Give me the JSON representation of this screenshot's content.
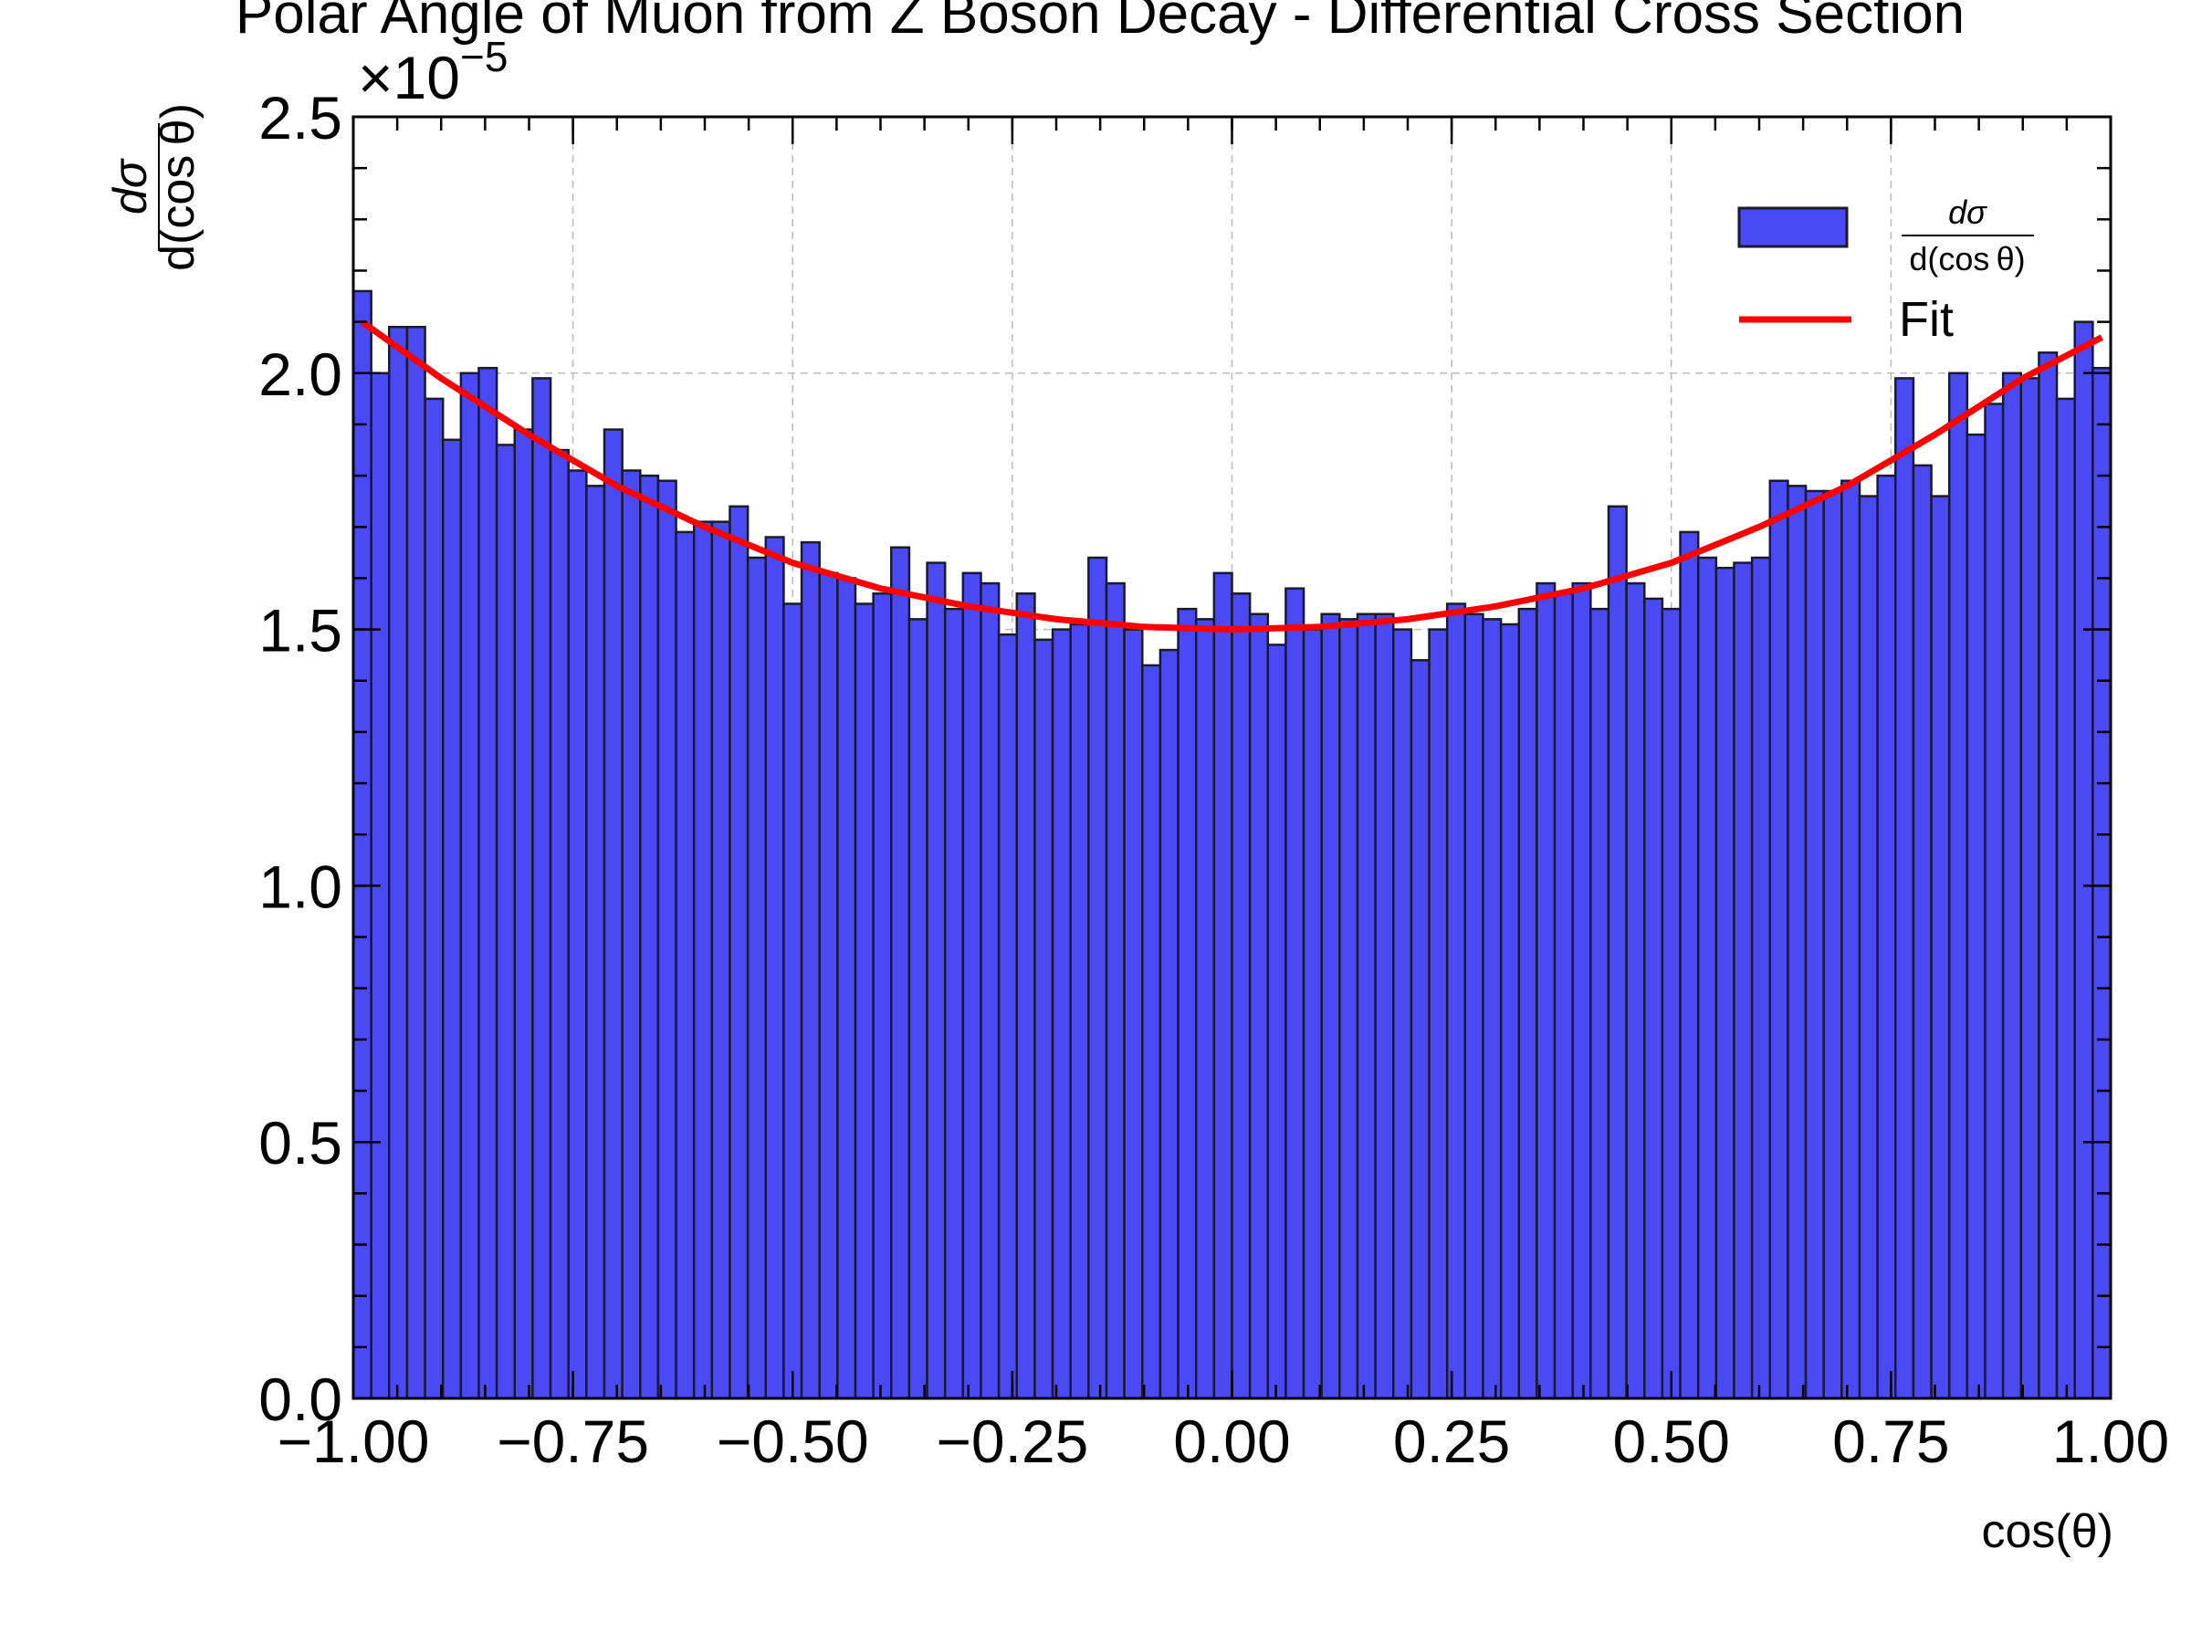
{
  "chart_data": {
    "type": "bar",
    "title": "Polar Angle of Muon from Z Boson Decay - Differential Cross Section",
    "xlabel": "cos(θ)",
    "ylabel_numerator": "dσ",
    "ylabel_denominator": "d(cos θ)",
    "y_multiplier": "×10",
    "y_multiplier_exponent": "−5",
    "xlim": [
      -1.0,
      1.0
    ],
    "ylim": [
      0.0,
      2.5
    ],
    "y_scale_note": "values in units of 1e-5",
    "xticks": [
      "−1.00",
      "−0.75",
      "−0.50",
      "−0.25",
      "0.00",
      "0.25",
      "0.50",
      "0.75",
      "1.00"
    ],
    "xtick_values": [
      -1.0,
      -0.75,
      -0.5,
      -0.25,
      0.0,
      0.25,
      0.5,
      0.75,
      1.0
    ],
    "yticks": [
      "0.0",
      "0.5",
      "1.0",
      "1.5",
      "2.0",
      "2.5"
    ],
    "ytick_values": [
      0.0,
      0.5,
      1.0,
      1.5,
      2.0,
      2.5
    ],
    "grid": true,
    "legend_position": "top-right",
    "bin_edges_range": [
      -1.0,
      1.0
    ],
    "series": [
      {
        "name": "dσ/d(cos θ)",
        "kind": "histogram",
        "color": "#4a4af5",
        "edge_color": "#1a1a2e",
        "values": [
          2.16,
          2.0,
          2.09,
          2.09,
          1.95,
          1.87,
          2.0,
          2.01,
          1.86,
          1.89,
          1.99,
          1.85,
          1.81,
          1.78,
          1.89,
          1.81,
          1.8,
          1.79,
          1.69,
          1.71,
          1.71,
          1.74,
          1.64,
          1.68,
          1.55,
          1.67,
          1.61,
          1.6,
          1.55,
          1.57,
          1.66,
          1.52,
          1.63,
          1.54,
          1.61,
          1.59,
          1.49,
          1.57,
          1.48,
          1.5,
          1.51,
          1.64,
          1.59,
          1.5,
          1.43,
          1.46,
          1.54,
          1.52,
          1.61,
          1.57,
          1.53,
          1.47,
          1.58,
          1.5,
          1.53,
          1.52,
          1.53,
          1.53,
          1.5,
          1.44,
          1.5,
          1.55,
          1.53,
          1.52,
          1.51,
          1.54,
          1.59,
          1.57,
          1.59,
          1.54,
          1.74,
          1.59,
          1.56,
          1.54,
          1.69,
          1.64,
          1.62,
          1.63,
          1.64,
          1.79,
          1.78,
          1.77,
          1.77,
          1.79,
          1.76,
          1.8,
          1.99,
          1.82,
          1.76,
          2.0,
          1.88,
          1.94,
          2.0,
          1.99,
          2.04,
          1.95,
          2.1,
          2.01
        ]
      },
      {
        "name": "Fit",
        "kind": "line",
        "color": "#ff0000",
        "x": [
          -0.99,
          -0.9,
          -0.8,
          -0.7,
          -0.6,
          -0.5,
          -0.4,
          -0.3,
          -0.2,
          -0.1,
          0.0,
          0.1,
          0.2,
          0.3,
          0.4,
          0.5,
          0.6,
          0.7,
          0.8,
          0.9,
          0.99
        ],
        "values": [
          2.1,
          1.99,
          1.88,
          1.78,
          1.7,
          1.63,
          1.58,
          1.545,
          1.52,
          1.505,
          1.5,
          1.505,
          1.52,
          1.545,
          1.58,
          1.63,
          1.7,
          1.78,
          1.88,
          1.99,
          2.07
        ]
      }
    ]
  }
}
